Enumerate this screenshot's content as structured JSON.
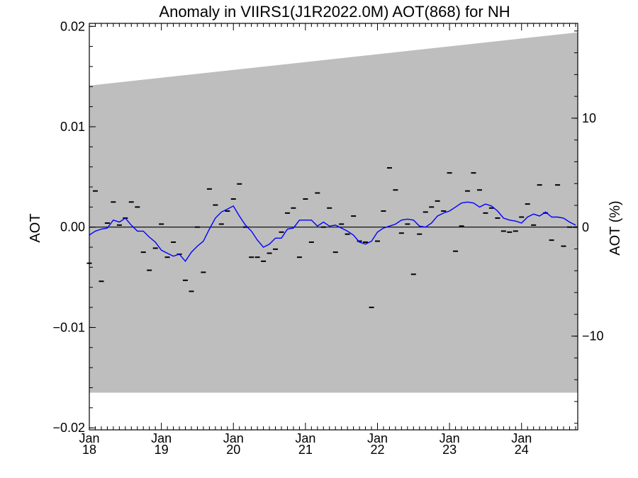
{
  "chart_data": {
    "type": "line",
    "title": "Anomaly in VIIRS1(J1R2022.0M) AOT(868) for NH",
    "ylabel": "AOT",
    "ylabel_right": "AOT (%)",
    "ylim": [
      -0.0202,
      0.0203
    ],
    "ylim_right": [
      -18.6,
      18.7
    ],
    "xlim": [
      2018.0,
      2024.78
    ],
    "y_ticks": [
      {
        "value": 0.02,
        "label": "0.02"
      },
      {
        "value": 0.01,
        "label": "0.01"
      },
      {
        "value": 0.0,
        "label": "0.00"
      },
      {
        "value": -0.01,
        "label": "−0.01"
      },
      {
        "value": -0.02,
        "label": "−0.02"
      }
    ],
    "y_ticks_right": [
      {
        "value": 10,
        "label": "10"
      },
      {
        "value": 0,
        "label": "0"
      },
      {
        "value": -10,
        "label": "−10"
      }
    ],
    "x_ticks": [
      {
        "value": 2018.0,
        "month": "Jan",
        "year": "18"
      },
      {
        "value": 2019.0,
        "month": "Jan",
        "year": "19"
      },
      {
        "value": 2020.0,
        "month": "Jan",
        "year": "20"
      },
      {
        "value": 2021.0,
        "month": "Jan",
        "year": "21"
      },
      {
        "value": 2022.0,
        "month": "Jan",
        "year": "22"
      },
      {
        "value": 2023.0,
        "month": "Jan",
        "year": "23"
      },
      {
        "value": 2024.0,
        "month": "Jan",
        "year": "24"
      }
    ],
    "band": {
      "x": [
        2018.0,
        2024.78
      ],
      "upper": [
        0.0141,
        0.0194
      ],
      "lower": [
        -0.0165,
        -0.0165
      ],
      "color": "#bebebe"
    },
    "zero_line": 0.0,
    "monthly": {
      "x": [
        2018.0,
        2018.083,
        2018.167,
        2018.25,
        2018.333,
        2018.417,
        2018.5,
        2018.583,
        2018.667,
        2018.75,
        2018.833,
        2018.917,
        2019.0,
        2019.083,
        2019.167,
        2019.25,
        2019.333,
        2019.417,
        2019.5,
        2019.583,
        2019.667,
        2019.75,
        2019.833,
        2019.917,
        2020.0,
        2020.083,
        2020.167,
        2020.25,
        2020.333,
        2020.417,
        2020.5,
        2020.583,
        2020.667,
        2020.75,
        2020.833,
        2020.917,
        2021.0,
        2021.083,
        2021.167,
        2021.25,
        2021.333,
        2021.417,
        2021.5,
        2021.583,
        2021.667,
        2021.75,
        2021.833,
        2021.917,
        2022.0,
        2022.083,
        2022.167,
        2022.25,
        2022.333,
        2022.417,
        2022.5,
        2022.583,
        2022.667,
        2022.75,
        2022.833,
        2022.917,
        2023.0,
        2023.083,
        2023.167,
        2023.25,
        2023.333,
        2023.417,
        2023.5,
        2023.583,
        2023.667,
        2023.75,
        2023.833,
        2023.917,
        2024.0,
        2024.083,
        2024.167,
        2024.25,
        2024.333,
        2024.417,
        2024.5,
        2024.583,
        2024.667,
        2024.75
      ],
      "values": [
        -0.0036,
        0.0036,
        -0.0054,
        0.0004,
        0.0025,
        0.0002,
        0.0009,
        0.0025,
        0.002,
        -0.0025,
        -0.0043,
        -0.0021,
        0.0003,
        -0.003,
        -0.0015,
        -0.0027,
        -0.0053,
        -0.0064,
        0.0,
        -0.0045,
        0.0038,
        0.0022,
        0.0003,
        0.0016,
        0.0028,
        0.0043,
        0.0,
        -0.003,
        -0.003,
        -0.0034,
        -0.0026,
        -0.0022,
        -0.0005,
        0.0014,
        0.0019,
        -0.003,
        0.0028,
        -0.0015,
        0.0034,
        0.0,
        0.0019,
        -0.0025,
        0.0003,
        -0.0007,
        0.0011,
        -0.0014,
        -0.0015,
        -0.008,
        -0.0014,
        0.0016,
        0.0059,
        0.0037,
        -0.0006,
        0.0003,
        -0.0047,
        -0.0007,
        0.0015,
        0.002,
        0.0026,
        0.0016,
        0.0054,
        -0.0024,
        0.0001,
        0.0036,
        0.0054,
        0.0037,
        0.0014,
        0.0019,
        0.0009,
        -0.0004,
        -0.0005,
        -0.0004,
        0.001,
        0.0023,
        0.0002,
        0.0042,
        0.0014,
        -0.0013,
        0.0042,
        -0.0019,
        0.0,
        0.0
      ]
    },
    "series": [
      {
        "color": "#0000ff",
        "x": [
          2018.0,
          2018.083,
          2018.167,
          2018.25,
          2018.333,
          2018.417,
          2018.5,
          2018.583,
          2018.667,
          2018.75,
          2018.833,
          2018.917,
          2019.0,
          2019.083,
          2019.167,
          2019.25,
          2019.333,
          2019.417,
          2019.5,
          2019.583,
          2019.667,
          2019.75,
          2019.833,
          2019.917,
          2020.0,
          2020.083,
          2020.167,
          2020.25,
          2020.333,
          2020.417,
          2020.5,
          2020.583,
          2020.667,
          2020.75,
          2020.833,
          2020.917,
          2021.0,
          2021.083,
          2021.167,
          2021.25,
          2021.333,
          2021.417,
          2021.5,
          2021.583,
          2021.667,
          2021.75,
          2021.833,
          2021.917,
          2022.0,
          2022.083,
          2022.167,
          2022.25,
          2022.333,
          2022.417,
          2022.5,
          2022.583,
          2022.667,
          2022.75,
          2022.833,
          2022.917,
          2023.0,
          2023.083,
          2023.167,
          2023.25,
          2023.333,
          2023.417,
          2023.5,
          2023.583,
          2023.667,
          2023.75,
          2023.833,
          2023.917,
          2024.0,
          2024.083,
          2024.167,
          2024.25,
          2024.333,
          2024.417,
          2024.5,
          2024.583,
          2024.667,
          2024.75
        ],
        "values": [
          -0.0008,
          -0.0004,
          -0.0002,
          -0.0001,
          0.0007,
          0.0005,
          0.0009,
          0.0002,
          -0.0004,
          -0.0004,
          -0.001,
          -0.0015,
          -0.0023,
          -0.0026,
          -0.0029,
          -0.0027,
          -0.0034,
          -0.0025,
          -0.0019,
          -0.0014,
          -0.0002,
          0.0009,
          0.0015,
          0.0018,
          0.0021,
          0.0011,
          0.0002,
          -0.0004,
          -0.0013,
          -0.002,
          -0.0017,
          -0.0011,
          -0.0011,
          -0.0002,
          -0.0001,
          0.0007,
          0.0007,
          0.0007,
          0.0001,
          0.0005,
          0.0001,
          0.0002,
          -0.0001,
          -0.0004,
          -0.0008,
          -0.0015,
          -0.0017,
          -0.0014,
          -0.0005,
          -0.0001,
          0.0001,
          0.0003,
          0.0007,
          0.0008,
          0.0007,
          0.0001,
          0.0,
          0.0004,
          0.0011,
          0.0014,
          0.0016,
          0.002,
          0.0024,
          0.0025,
          0.0024,
          0.002,
          0.0023,
          0.0021,
          0.0016,
          0.0009,
          0.0007,
          0.0006,
          0.0004,
          0.001,
          0.0013,
          0.0011,
          0.0015,
          0.001,
          0.001,
          0.0009,
          0.0005,
          0.0002
        ]
      }
    ]
  }
}
